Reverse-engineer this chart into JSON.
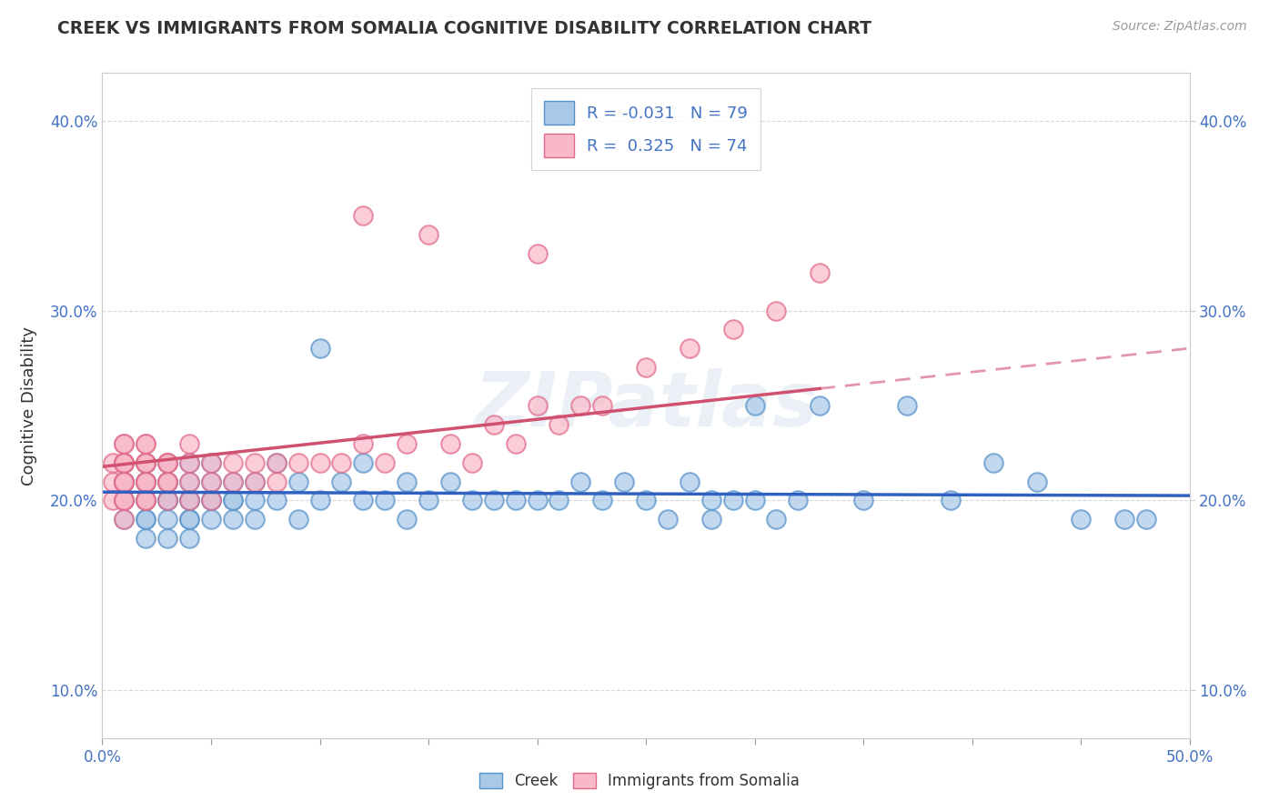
{
  "title": "CREEK VS IMMIGRANTS FROM SOMALIA COGNITIVE DISABILITY CORRELATION CHART",
  "source": "Source: ZipAtlas.com",
  "ylabel": "Cognitive Disability",
  "legend_labels": [
    "Creek",
    "Immigrants from Somalia"
  ],
  "xlim": [
    0.0,
    0.5
  ],
  "ylim": [
    0.075,
    0.425
  ],
  "x_ticks": [
    0.0,
    0.05,
    0.1,
    0.15,
    0.2,
    0.25,
    0.3,
    0.35,
    0.4,
    0.45,
    0.5
  ],
  "x_label_ticks": [
    0.0,
    0.5
  ],
  "x_label_values": [
    "0.0%",
    "50.0%"
  ],
  "y_ticks": [
    0.1,
    0.2,
    0.3,
    0.4
  ],
  "y_tick_labels": [
    "10.0%",
    "20.0%",
    "30.0%",
    "40.0%"
  ],
  "creek_color": "#a8c8e8",
  "creek_edge_color": "#5590c8",
  "somalia_color": "#f8b8c8",
  "somalia_edge_color": "#e06888",
  "creek_line_color": "#3060c0",
  "somalia_line_color": "#d05070",
  "R_creek": -0.031,
  "N_creek": 79,
  "R_somalia": 0.325,
  "N_somalia": 74,
  "watermark": "ZIPatlas",
  "background_color": "#ffffff",
  "grid_color": "#d8d8d8",
  "creek_scatter_x": [
    0.01,
    0.01,
    0.01,
    0.02,
    0.02,
    0.02,
    0.02,
    0.02,
    0.02,
    0.02,
    0.02,
    0.03,
    0.03,
    0.03,
    0.03,
    0.03,
    0.03,
    0.03,
    0.03,
    0.04,
    0.04,
    0.04,
    0.04,
    0.04,
    0.04,
    0.04,
    0.05,
    0.05,
    0.05,
    0.05,
    0.05,
    0.06,
    0.06,
    0.06,
    0.06,
    0.07,
    0.07,
    0.07,
    0.08,
    0.08,
    0.09,
    0.09,
    0.1,
    0.1,
    0.11,
    0.12,
    0.12,
    0.13,
    0.14,
    0.14,
    0.15,
    0.16,
    0.17,
    0.18,
    0.19,
    0.2,
    0.21,
    0.22,
    0.23,
    0.24,
    0.25,
    0.26,
    0.27,
    0.28,
    0.28,
    0.29,
    0.3,
    0.3,
    0.31,
    0.32,
    0.33,
    0.35,
    0.37,
    0.39,
    0.41,
    0.43,
    0.45,
    0.47,
    0.48
  ],
  "creek_scatter_y": [
    0.2,
    0.19,
    0.21,
    0.2,
    0.19,
    0.21,
    0.2,
    0.18,
    0.22,
    0.21,
    0.19,
    0.2,
    0.21,
    0.19,
    0.22,
    0.2,
    0.18,
    0.21,
    0.2,
    0.2,
    0.19,
    0.21,
    0.18,
    0.2,
    0.22,
    0.19,
    0.2,
    0.21,
    0.19,
    0.2,
    0.22,
    0.2,
    0.19,
    0.21,
    0.2,
    0.2,
    0.19,
    0.21,
    0.2,
    0.22,
    0.19,
    0.21,
    0.28,
    0.2,
    0.21,
    0.2,
    0.22,
    0.2,
    0.21,
    0.19,
    0.2,
    0.21,
    0.2,
    0.2,
    0.2,
    0.2,
    0.2,
    0.21,
    0.2,
    0.21,
    0.2,
    0.19,
    0.21,
    0.2,
    0.19,
    0.2,
    0.25,
    0.2,
    0.19,
    0.2,
    0.25,
    0.2,
    0.25,
    0.2,
    0.22,
    0.21,
    0.19,
    0.19,
    0.19
  ],
  "somalia_scatter_x": [
    0.005,
    0.005,
    0.005,
    0.01,
    0.01,
    0.01,
    0.01,
    0.01,
    0.01,
    0.01,
    0.01,
    0.01,
    0.01,
    0.01,
    0.01,
    0.01,
    0.01,
    0.01,
    0.01,
    0.02,
    0.02,
    0.02,
    0.02,
    0.02,
    0.02,
    0.02,
    0.02,
    0.02,
    0.02,
    0.02,
    0.02,
    0.02,
    0.03,
    0.03,
    0.03,
    0.03,
    0.03,
    0.03,
    0.03,
    0.04,
    0.04,
    0.04,
    0.04,
    0.05,
    0.05,
    0.05,
    0.06,
    0.06,
    0.07,
    0.07,
    0.08,
    0.08,
    0.09,
    0.1,
    0.11,
    0.12,
    0.13,
    0.14,
    0.16,
    0.18,
    0.2,
    0.22,
    0.17,
    0.19,
    0.21,
    0.23,
    0.25,
    0.27,
    0.29,
    0.31,
    0.33,
    0.12,
    0.15,
    0.2
  ],
  "somalia_scatter_y": [
    0.22,
    0.21,
    0.2,
    0.23,
    0.22,
    0.21,
    0.2,
    0.22,
    0.21,
    0.23,
    0.22,
    0.21,
    0.2,
    0.22,
    0.21,
    0.2,
    0.22,
    0.21,
    0.19,
    0.22,
    0.21,
    0.23,
    0.22,
    0.21,
    0.2,
    0.22,
    0.21,
    0.2,
    0.22,
    0.21,
    0.23,
    0.2,
    0.22,
    0.21,
    0.22,
    0.21,
    0.2,
    0.22,
    0.21,
    0.22,
    0.21,
    0.2,
    0.23,
    0.22,
    0.21,
    0.2,
    0.22,
    0.21,
    0.22,
    0.21,
    0.22,
    0.21,
    0.22,
    0.22,
    0.22,
    0.23,
    0.22,
    0.23,
    0.23,
    0.24,
    0.25,
    0.25,
    0.22,
    0.23,
    0.24,
    0.25,
    0.27,
    0.28,
    0.29,
    0.3,
    0.32,
    0.35,
    0.34,
    0.33
  ]
}
